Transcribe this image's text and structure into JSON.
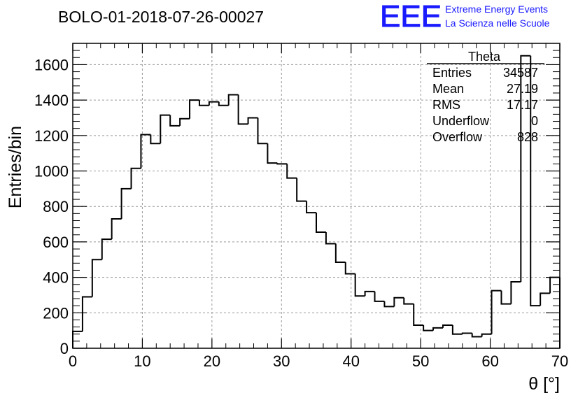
{
  "chart_data": {
    "type": "histogram",
    "title": "BOLO-01-2018-07-26-00027",
    "xlabel": "θ [°]",
    "ylabel": "Entries/bin",
    "xlim": [
      0,
      70
    ],
    "ylim": [
      0,
      1720
    ],
    "grid": true,
    "bin_width": 1.4,
    "x_ticks": [
      0,
      10,
      20,
      30,
      40,
      50,
      60,
      70
    ],
    "y_ticks": [
      0,
      200,
      400,
      600,
      800,
      1000,
      1200,
      1400,
      1600
    ],
    "series": [
      {
        "values": [
          95,
          290,
          500,
          615,
          730,
          900,
          1015,
          1205,
          1155,
          1315,
          1255,
          1295,
          1400,
          1370,
          1390,
          1370,
          1430,
          1265,
          1300,
          1155,
          1045,
          1040,
          960,
          830,
          765,
          655,
          590,
          485,
          420,
          295,
          320,
          265,
          235,
          285,
          250,
          130,
          100,
          115,
          130,
          80,
          85,
          65,
          80,
          325,
          250,
          375,
          1650,
          240,
          310,
          400
        ]
      }
    ],
    "stats_box": {
      "name": "Theta",
      "rows": [
        {
          "label": "Entries",
          "value": "34587"
        },
        {
          "label": "Mean",
          "value": "27.19"
        },
        {
          "label": "RMS",
          "value": "17.17"
        },
        {
          "label": "Underflow",
          "value": "0"
        },
        {
          "label": "Overflow",
          "value": "828"
        }
      ]
    }
  },
  "logo": {
    "mark": "EEE",
    "line1": "Extreme Energy Events",
    "line2": "La Scienza nelle Scuole",
    "color": "#1a1aff"
  },
  "colors": {
    "line": "#000000",
    "grid": "#9a9a9a",
    "background": "#ffffff"
  }
}
